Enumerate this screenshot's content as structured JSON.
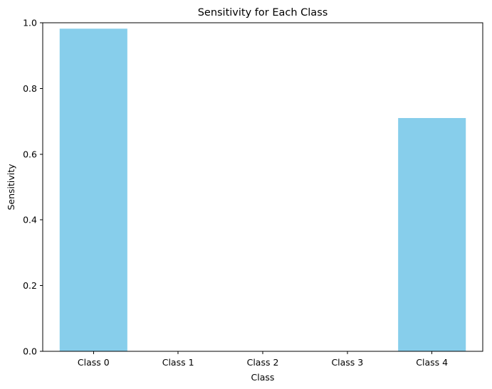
{
  "chart_data": {
    "type": "bar",
    "title": "Sensitivity for Each Class",
    "xlabel": "Class",
    "ylabel": "Sensitivity",
    "categories": [
      "Class 0",
      "Class 1",
      "Class 2",
      "Class 3",
      "Class 4"
    ],
    "values": [
      0.982,
      0.0,
      0.0,
      0.0,
      0.71
    ],
    "ylim": [
      0,
      1.0
    ],
    "yticks": [
      "0.0",
      "0.2",
      "0.4",
      "0.6",
      "0.8",
      "1.0"
    ],
    "bar_color": "#87ceeb",
    "grid": false,
    "legend": "none"
  }
}
